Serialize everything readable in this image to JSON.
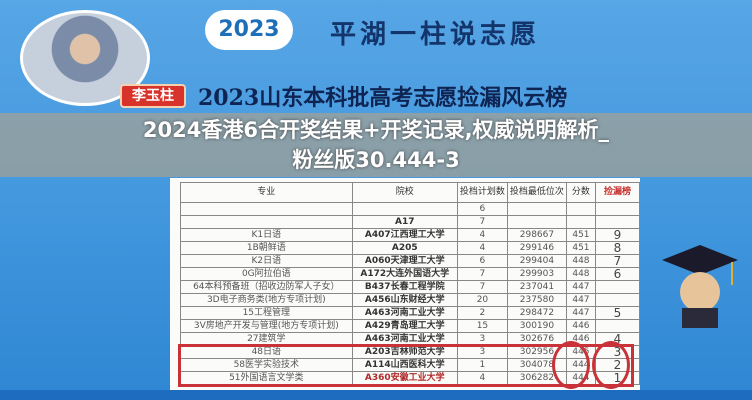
{
  "header": {
    "year_badge": "2023",
    "brand": "平湖一柱说志愿",
    "title": "2023山东本科批高考志愿捡漏风云榜",
    "presenter_name": "李玉柱"
  },
  "table": {
    "columns": [
      "专业",
      "院校",
      "投档计划数",
      "投档最低位次",
      "分数",
      "捡漏榜"
    ],
    "rows": [
      [
        "",
        "",
        "6",
        "",
        "",
        ""
      ],
      [
        "",
        "A17",
        "7",
        "",
        "",
        ""
      ],
      [
        "K1日语",
        "A407江西理工大学",
        "4",
        "298667",
        "451",
        "9"
      ],
      [
        "1B朝鲜语",
        "A205",
        "4",
        "299146",
        "451",
        "8"
      ],
      [
        "K2日语",
        "A060天津理工大学",
        "6",
        "299404",
        "448",
        "7"
      ],
      [
        "0G阿拉伯语",
        "A172大连外国语大学",
        "7",
        "299903",
        "448",
        "6"
      ],
      [
        "64本科预备班（招收边防军人子女）",
        "B437长春工程学院",
        "7",
        "237041",
        "447",
        ""
      ],
      [
        "3D电子商务类(地方专项计划)",
        "A456山东财经大学",
        "20",
        "237580",
        "447",
        ""
      ],
      [
        "15工程管理",
        "A463河南工业大学",
        "2",
        "298472",
        "447",
        "5"
      ],
      [
        "3V房地产开发与管理(地方专项计划)",
        "A429青岛理工大学",
        "15",
        "300190",
        "446",
        ""
      ],
      [
        "27建筑学",
        "A463河南工业大学",
        "3",
        "302676",
        "446",
        "4"
      ],
      [
        "48日语",
        "A203吉林师范大学",
        "3",
        "302956",
        "445",
        "3"
      ],
      [
        "58医学实验技术",
        "A114山西医科大学",
        "1",
        "304078",
        "444",
        "2"
      ],
      [
        "51外国语言文学类",
        "A360安徽工业大学",
        "4",
        "306282",
        "444",
        "1"
      ]
    ]
  },
  "overlay": {
    "line1": "2024香港6合开奖结果+开奖记录,权威说明解析_",
    "line2": "粉丝版30.444-3"
  },
  "colors": {
    "background": "#3f95dc",
    "highlight": "#c83238",
    "title": "#0e2452"
  }
}
